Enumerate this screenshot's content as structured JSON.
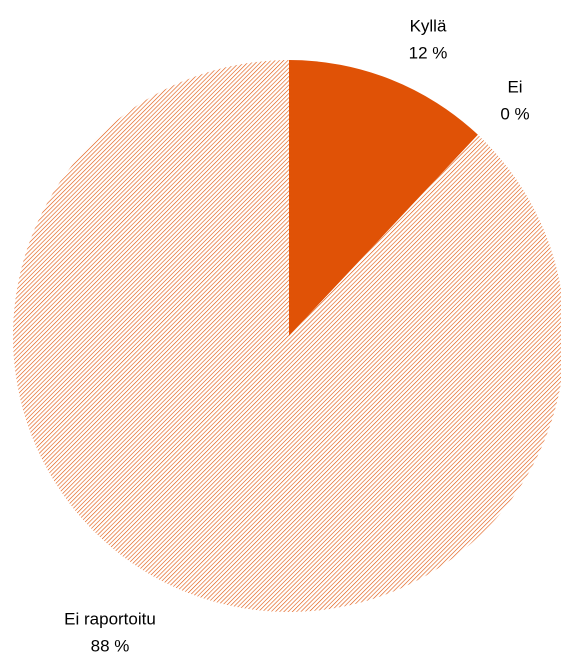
{
  "chart_data": {
    "type": "pie",
    "categories": [
      "Kyllä",
      "Ei",
      "Ei raportoitu"
    ],
    "values": [
      12,
      0,
      88
    ],
    "value_labels": [
      "12 %",
      "0 %",
      "88 %"
    ],
    "colors": [
      "#e05206",
      "#e05206",
      "#e05206"
    ],
    "hatch": [
      false,
      false,
      true
    ]
  }
}
